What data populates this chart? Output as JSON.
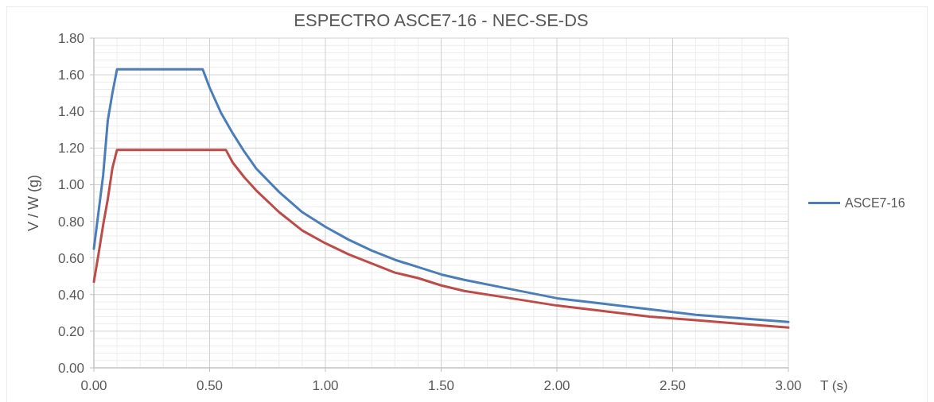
{
  "chart_data": {
    "type": "line",
    "title": "ESPECTRO ASCE7-16   -   NEC-SE-DS",
    "xlabel": "T (s)",
    "ylabel": "V / W (g)",
    "xlim": [
      0,
      3
    ],
    "xticks": [
      {
        "value": 0,
        "label": "0.00"
      },
      {
        "value": 0.5,
        "label": "0.50"
      },
      {
        "value": 1,
        "label": "1.00"
      },
      {
        "value": 1.5,
        "label": "1.50"
      },
      {
        "value": 2,
        "label": "2.00"
      },
      {
        "value": 2.5,
        "label": "2.50"
      },
      {
        "value": 3,
        "label": "3.00"
      }
    ],
    "ylim": [
      0,
      1.8
    ],
    "yticks": [
      {
        "value": 0,
        "label": "0.00"
      },
      {
        "value": 0.2,
        "label": "0.20"
      },
      {
        "value": 0.4,
        "label": "0.40"
      },
      {
        "value": 0.6,
        "label": "0.60"
      },
      {
        "value": 0.8,
        "label": "0.80"
      },
      {
        "value": 1,
        "label": "1.00"
      },
      {
        "value": 1.2,
        "label": "1.20"
      },
      {
        "value": 1.4,
        "label": "1.40"
      },
      {
        "value": 1.6,
        "label": "1.60"
      },
      {
        "value": 1.8,
        "label": "1.80"
      }
    ],
    "grid": true,
    "legend": "right",
    "marker": "none",
    "line_style": "solid",
    "series": [
      {
        "name": "ASCE7-16",
        "color": "#4a7ebb",
        "x": [
          0,
          0.02,
          0.04,
          0.06,
          0.08,
          0.1,
          0.47,
          0.5,
          0.55,
          0.6,
          0.65,
          0.7,
          0.8,
          0.9,
          1.0,
          1.1,
          1.2,
          1.3,
          1.4,
          1.5,
          1.6,
          1.8,
          2.0,
          2.2,
          2.4,
          2.6,
          2.8,
          3.0
        ],
        "values": [
          0.65,
          0.85,
          1.05,
          1.35,
          1.5,
          1.63,
          1.63,
          1.53,
          1.39,
          1.28,
          1.18,
          1.09,
          0.96,
          0.85,
          0.77,
          0.7,
          0.64,
          0.59,
          0.55,
          0.51,
          0.48,
          0.43,
          0.38,
          0.35,
          0.32,
          0.29,
          0.27,
          0.25
        ]
      },
      {
        "color": "#be4b48",
        "x": [
          0,
          0.02,
          0.04,
          0.06,
          0.08,
          0.1,
          0.57,
          0.6,
          0.65,
          0.7,
          0.8,
          0.9,
          1.0,
          1.1,
          1.2,
          1.3,
          1.4,
          1.5,
          1.6,
          1.8,
          2.0,
          2.2,
          2.4,
          2.6,
          2.8,
          3.0
        ],
        "values": [
          0.47,
          0.62,
          0.78,
          0.92,
          1.09,
          1.19,
          1.19,
          1.12,
          1.04,
          0.97,
          0.85,
          0.75,
          0.68,
          0.62,
          0.57,
          0.52,
          0.49,
          0.45,
          0.42,
          0.38,
          0.34,
          0.31,
          0.28,
          0.26,
          0.24,
          0.22
        ]
      }
    ]
  }
}
